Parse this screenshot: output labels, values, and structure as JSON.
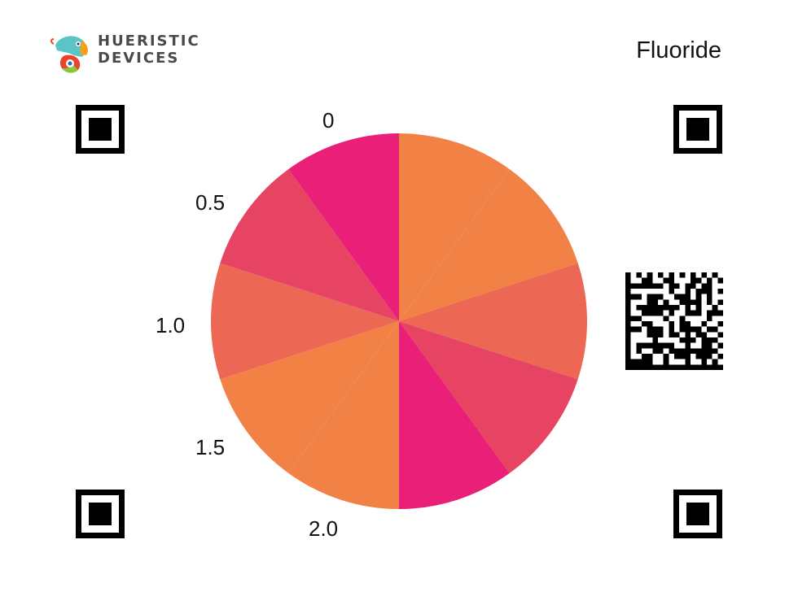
{
  "brand": {
    "logo_icon": "chameleon-icon",
    "line1": "HUERISTIC",
    "line2": "DEVICES",
    "colors": [
      "#5bc4c9",
      "#f4a01c",
      "#e8452e",
      "#8cc63f"
    ]
  },
  "analyte": "Fluoride",
  "scale_labels": [
    "0",
    "0.5",
    "1.0",
    "1.5",
    "2.0"
  ],
  "chart_data": {
    "type": "pie",
    "slices": [
      {
        "value": 1,
        "color": "#f28146"
      },
      {
        "value": 1,
        "color": "#f28146"
      },
      {
        "value": 1,
        "color": "#ec6854"
      },
      {
        "value": 1,
        "color": "#e64462"
      },
      {
        "value": 1,
        "color": "#ea1f78"
      },
      {
        "value": 1,
        "color": "#f28146"
      },
      {
        "value": 1,
        "color": "#f28146"
      },
      {
        "value": 1,
        "color": "#ec6854"
      },
      {
        "value": 1,
        "color": "#e64462"
      },
      {
        "value": 1,
        "color": "#ea1f78"
      }
    ]
  },
  "markers": [
    "finder-pattern-top-left",
    "finder-pattern-top-right",
    "finder-pattern-bottom-left",
    "finder-pattern-bottom-right"
  ],
  "data_matrix_icon": "data-matrix-code-icon"
}
